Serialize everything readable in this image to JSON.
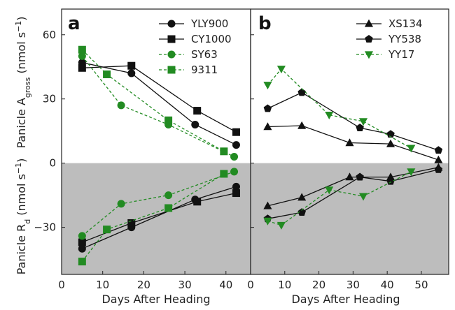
{
  "colors": {
    "black": "#111111",
    "green": "#228B22",
    "negative_region": "#bdbdbd"
  },
  "labels": {
    "ylabel_top_prefix": "Panicle A",
    "ylabel_top_sub": "gross",
    "ylabel_top_suffix": " (nmol s",
    "ylabel_bottom_prefix": "Panicle R",
    "ylabel_bottom_sub": "d",
    "ylabel_bottom_suffix": " (nmol s",
    "unit_exp": "−1",
    "unit_close": ")"
  },
  "chart_data": [
    {
      "type": "line",
      "panel": "a",
      "xlabel": "Days After Heading",
      "xlim": [
        0,
        46
      ],
      "ylim": [
        -52,
        72
      ],
      "xticks": [
        0,
        10,
        20,
        30,
        40
      ],
      "yticks": [
        -30,
        0,
        30,
        60
      ],
      "negative_region_shaded": true,
      "legend_position": "top-right",
      "series": [
        {
          "name": "YLY900",
          "color": "#111111",
          "marker": "circle",
          "dashed": false,
          "x": [
            5,
            17,
            32.5,
            42.5
          ],
          "agross": [
            47,
            42,
            18,
            8.5
          ],
          "rd": [
            -40,
            -30,
            -17,
            -11
          ]
        },
        {
          "name": "CY1000",
          "color": "#111111",
          "marker": "square",
          "dashed": false,
          "x": [
            5,
            17,
            33,
            42.5
          ],
          "agross": [
            44.5,
            45.5,
            24.5,
            14.5
          ],
          "rd": [
            -37,
            -28,
            -18,
            -14
          ]
        },
        {
          "name": "SY63",
          "color": "#228B22",
          "marker": "circle",
          "dashed": true,
          "x": [
            5,
            14.5,
            26,
            42
          ],
          "agross": [
            50,
            27,
            18,
            3
          ],
          "rd": [
            -34,
            -19,
            -15,
            -4
          ]
        },
        {
          "name": "9311",
          "color": "#228B22",
          "marker": "square",
          "dashed": true,
          "x": [
            5,
            11,
            26,
            39.5
          ],
          "agross": [
            53,
            41.5,
            20,
            5.5
          ],
          "rd": [
            -46,
            -31,
            -21,
            -5
          ]
        }
      ]
    },
    {
      "type": "line",
      "panel": "b",
      "xlabel": "Days After Heading",
      "xlim": [
        0,
        58
      ],
      "ylim": [
        -52,
        72
      ],
      "xticks": [
        0,
        10,
        20,
        30,
        40,
        50
      ],
      "yticks": [
        -30,
        0,
        30,
        60
      ],
      "negative_region_shaded": true,
      "legend_position": "top-right",
      "series": [
        {
          "name": "XS134",
          "color": "#111111",
          "marker": "triangle-up",
          "dashed": false,
          "x": [
            5,
            15,
            29,
            41,
            55
          ],
          "agross": [
            17,
            17.5,
            9.5,
            9,
            1.5
          ],
          "rd": [
            -20,
            -16,
            -6.5,
            -6.5,
            -2
          ]
        },
        {
          "name": "YY538",
          "color": "#111111",
          "marker": "pentagon",
          "dashed": false,
          "x": [
            5,
            15,
            32,
            41,
            55
          ],
          "agross": [
            25.5,
            33,
            16.5,
            13.5,
            6
          ],
          "rd": [
            -26,
            -23,
            -6.5,
            -8.5,
            -3
          ]
        },
        {
          "name": "YY17",
          "color": "#228B22",
          "marker": "triangle-down",
          "dashed": true,
          "x": [
            5,
            9,
            23,
            33,
            47
          ],
          "agross": [
            36.5,
            44,
            22.5,
            19.5,
            7
          ],
          "rd": [
            -27,
            -29,
            -12.5,
            -15.5,
            -4
          ]
        }
      ]
    }
  ]
}
